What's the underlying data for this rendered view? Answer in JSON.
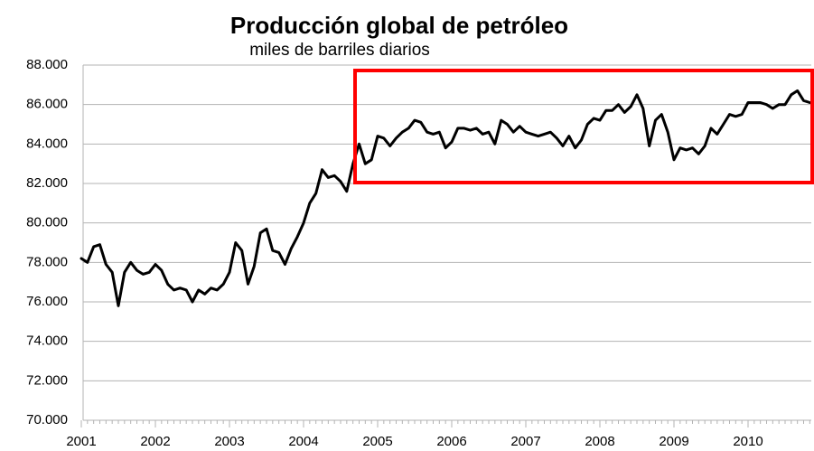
{
  "chart_data": {
    "type": "line",
    "title": "Producción global de petróleo",
    "subtitle": "miles de barriles diarios",
    "categories": [
      "2001",
      null,
      null,
      null,
      null,
      null,
      null,
      null,
      null,
      null,
      null,
      null,
      "2002",
      null,
      null,
      null,
      null,
      null,
      null,
      null,
      null,
      null,
      null,
      null,
      "2003",
      null,
      null,
      null,
      null,
      null,
      null,
      null,
      null,
      null,
      null,
      null,
      "2004",
      null,
      null,
      null,
      null,
      null,
      null,
      null,
      null,
      null,
      null,
      null,
      "2005",
      null,
      null,
      null,
      null,
      null,
      null,
      null,
      null,
      null,
      null,
      null,
      "2006",
      null,
      null,
      null,
      null,
      null,
      null,
      null,
      null,
      null,
      null,
      null,
      "2007",
      null,
      null,
      null,
      null,
      null,
      null,
      null,
      null,
      null,
      null,
      null,
      "2008",
      null,
      null,
      null,
      null,
      null,
      null,
      null,
      null,
      null,
      null,
      null,
      "2009",
      null,
      null,
      null,
      null,
      null,
      null,
      null,
      null,
      null,
      null,
      null,
      "2010",
      null,
      null,
      null,
      null,
      null,
      null,
      null,
      null,
      null,
      null
    ],
    "series": [
      {
        "name": "Producción",
        "color": "#000000",
        "values": [
          78200,
          78000,
          78800,
          78900,
          77900,
          77500,
          75800,
          77500,
          78000,
          77600,
          77400,
          77500,
          77900,
          77600,
          76900,
          76600,
          76700,
          76600,
          76000,
          76600,
          76400,
          76700,
          76600,
          76900,
          77500,
          79000,
          78600,
          76900,
          77800,
          79500,
          79700,
          78600,
          78500,
          77900,
          78700,
          79300,
          80000,
          81000,
          81500,
          82700,
          82300,
          82400,
          82100,
          81600,
          83000,
          84000,
          83000,
          83200,
          84400,
          84300,
          83900,
          84300,
          84600,
          84800,
          85200,
          85100,
          84600,
          84500,
          84600,
          83800,
          84100,
          84800,
          84800,
          84700,
          84800,
          84500,
          84600,
          84000,
          85200,
          85000,
          84600,
          84900,
          84600,
          84500,
          84400,
          84500,
          84600,
          84300,
          83900,
          84400,
          83800,
          84200,
          85000,
          85300,
          85200,
          85700,
          85700,
          86000,
          85600,
          85900,
          86500,
          85800,
          83900,
          85200,
          85500,
          84600,
          83200,
          83800,
          83700,
          83800,
          83500,
          83900,
          84800,
          84500,
          85000,
          85500,
          85400,
          85500,
          86100,
          86100,
          86100,
          86000,
          85800,
          86000,
          86000,
          86500,
          86700,
          86200,
          86100
        ]
      }
    ],
    "ylim": [
      70000,
      88000
    ],
    "yticks": [
      {
        "value": 70000,
        "label": "70.000"
      },
      {
        "value": 72000,
        "label": "72.000"
      },
      {
        "value": 74000,
        "label": "74.000"
      },
      {
        "value": 76000,
        "label": "76.000"
      },
      {
        "value": 78000,
        "label": "78.000"
      },
      {
        "value": 80000,
        "label": "80.000"
      },
      {
        "value": 82000,
        "label": "82.000"
      },
      {
        "value": 84000,
        "label": "84.000"
      },
      {
        "value": 86000,
        "label": "86.000"
      },
      {
        "value": 88000,
        "label": "88.000"
      }
    ],
    "grid": true
  }
}
